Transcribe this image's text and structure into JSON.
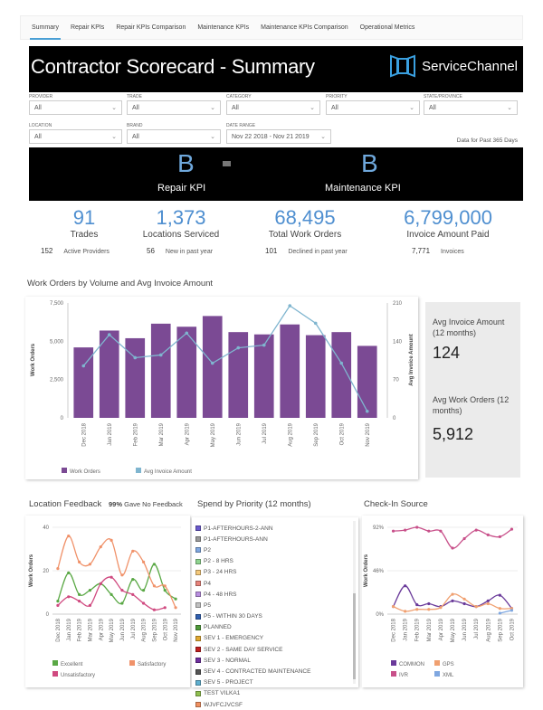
{
  "tabs": [
    "Summary",
    "Repair KPIs",
    "Repair KPIs Comparison",
    "Maintenance KPIs",
    "Maintenance KPIs Comparison",
    "Operational Metrics"
  ],
  "header": {
    "title": "Contractor Scorecard - Summary",
    "logo": "ServiceChannel",
    "logo_color": "#3aa0e0"
  },
  "filters": [
    {
      "label": "PROVIDER",
      "value": "All"
    },
    {
      "label": "TRADE",
      "value": "All"
    },
    {
      "label": "CATEGORY",
      "value": "All"
    },
    {
      "label": "PRIORITY",
      "value": "All"
    },
    {
      "label": "STATE/PROVINCE",
      "value": "All"
    },
    {
      "label": "LOCATION",
      "value": "All"
    },
    {
      "label": "BRAND",
      "value": "All"
    },
    {
      "label": "DATE RANGE",
      "value": "Nov 22 2018 - Nov 21 2019"
    }
  ],
  "data_note": "Data for Past 365 Days",
  "kpi": {
    "repair_grade": "B",
    "repair_label": "Repair KPI",
    "maint_grade": "B",
    "maint_label": "Maintenance KPI"
  },
  "stats": [
    {
      "value": "91",
      "label": "Trades",
      "sub_value": "152",
      "sub_label": "Active Providers"
    },
    {
      "value": "1,373",
      "label": "Locations Serviced",
      "sub_value": "56",
      "sub_label": "New in past year"
    },
    {
      "value": "68,495",
      "label": "Total Work Orders",
      "sub_value": "101",
      "sub_label": "Declined in past year"
    },
    {
      "value": "6,799,000",
      "label": "Invoice Amount Paid",
      "sub_value": "7,771",
      "sub_label": "Invoices"
    }
  ],
  "side": {
    "avg_invoice_label": "Avg Invoice Amount (12 months)",
    "avg_invoice_value": "124",
    "avg_wo_label": "Avg Work Orders (12 months)",
    "avg_wo_value": "5,912"
  },
  "location_feedback": {
    "title": "Location Feedback",
    "pct": "99%",
    "pct_label": "Gave No Feedback"
  },
  "spend_title": "Spend by Priority (12 months)",
  "priorities": [
    {
      "name": "P1-AFTERHOURS-2-ANN",
      "color": "#6a5acd"
    },
    {
      "name": "P1-AFTERHOURS-ANN",
      "color": "#999999"
    },
    {
      "name": "P2",
      "color": "#7fa7e0"
    },
    {
      "name": "P2 - 8 HRS",
      "color": "#8fd48f"
    },
    {
      "name": "P3 - 24 HRS",
      "color": "#f5c97a"
    },
    {
      "name": "P4",
      "color": "#e8837a"
    },
    {
      "name": "P4 - 48 HRS",
      "color": "#b98fe0"
    },
    {
      "name": "P5",
      "color": "#c0c0c0"
    },
    {
      "name": "P5 - WITHIN 30 DAYS",
      "color": "#2f5fb0"
    },
    {
      "name": "PLANNED",
      "color": "#4f9a3a"
    },
    {
      "name": "SEV 1 - EMERGENCY",
      "color": "#e0a830"
    },
    {
      "name": "SEV 2 - SAME DAY SERVICE",
      "color": "#c02020"
    },
    {
      "name": "SEV 3 - NORMAL",
      "color": "#7030a0"
    },
    {
      "name": "SEV 4 - CONTRACTED MAINTENANCE",
      "color": "#555555"
    },
    {
      "name": "SEV 5 - PROJECT",
      "color": "#5fb0d0"
    },
    {
      "name": "TEST VILKA1",
      "color": "#90c050"
    },
    {
      "name": "WJVFCJVCSF",
      "color": "#f09060"
    }
  ],
  "checkin_title": "Check-In Source",
  "chart_data": [
    {
      "type": "bar+line",
      "title": "Work Orders by Volume and Avg Invoice Amount",
      "categories": [
        "Dec 2018",
        "Jan 2019",
        "Feb 2019",
        "Mar 2019",
        "Apr 2019",
        "May 2019",
        "Jun 2019",
        "Jul 2019",
        "Aug 2019",
        "Sep 2019",
        "Oct 2019",
        "Nov 2019"
      ],
      "ylabel": "Work Orders",
      "y2label": "Avg Invoice Amount",
      "ylim": [
        0,
        7500
      ],
      "yticks": [
        "0",
        "2,500",
        "5,000",
        "7,500"
      ],
      "y2lim": [
        0,
        210
      ],
      "y2ticks": [
        "0",
        "70",
        "140",
        "210"
      ],
      "series": [
        {
          "name": "Work Orders",
          "type": "bar",
          "color": "#7b4a94",
          "values": [
            4600,
            5700,
            5200,
            6150,
            5950,
            6650,
            5600,
            5450,
            6100,
            5400,
            5600,
            4700
          ]
        },
        {
          "name": "Avg Invoice Amount",
          "type": "line",
          "color": "#7fb5cf",
          "values": [
            95,
            152,
            110,
            115,
            155,
            100,
            128,
            133,
            205,
            173,
            100,
            12
          ]
        }
      ],
      "legend": "bottom-left"
    },
    {
      "type": "line",
      "categories": [
        "Dec 2018",
        "Jan 2019",
        "Feb 2019",
        "Mar 2019",
        "Apr 2019",
        "May 2019",
        "Jun 2019",
        "Jul 2019",
        "Aug 2019",
        "Sep 2019",
        "Oct 2019",
        "Nov 2019"
      ],
      "ylabel": "Work Orders",
      "ylim": [
        0,
        40
      ],
      "yticks": [
        "0",
        "20",
        "40"
      ],
      "series": [
        {
          "name": "Excellent",
          "color": "#5aa845",
          "values": [
            6,
            19,
            9,
            11,
            14,
            9,
            5,
            16,
            11,
            23,
            11,
            7
          ]
        },
        {
          "name": "Satisfactory",
          "color": "#f0926a",
          "values": [
            21,
            36,
            24,
            23,
            31,
            34,
            18,
            29,
            24,
            13,
            13,
            3
          ]
        },
        {
          "name": "Unsatisfactory",
          "color": "#d04a80",
          "values": [
            4,
            8,
            6,
            4,
            14,
            17,
            11,
            9,
            5,
            2,
            3,
            null
          ]
        }
      ],
      "legend": "bottom"
    },
    {
      "type": "line",
      "categories": [
        "Dec 2018",
        "Jan 2019",
        "Feb 2019",
        "Mar 2019",
        "Apr 2019",
        "May 2019",
        "Jun 2019",
        "Jul 2019",
        "Aug 2019",
        "Sep 2019",
        "Oct 2019"
      ],
      "ylabel": "Work Orders",
      "ylim": [
        0,
        92
      ],
      "yticks": [
        "0%",
        "46%",
        "92%"
      ],
      "series": [
        {
          "name": "COMMON",
          "color": "#6a3a9a",
          "values": [
            8,
            30,
            10,
            11,
            8,
            14,
            11,
            8,
            14,
            20,
            6
          ]
        },
        {
          "name": "GPS",
          "color": "#f0a070",
          "values": [
            8,
            3,
            5,
            5,
            7,
            21,
            16,
            8,
            11,
            6,
            6
          ]
        },
        {
          "name": "IVR",
          "color": "#c8508a",
          "values": [
            88,
            89,
            92,
            88,
            88,
            70,
            80,
            89,
            84,
            82,
            90
          ]
        },
        {
          "name": "XML",
          "color": "#7fa7e0",
          "values": [
            null,
            null,
            null,
            null,
            null,
            null,
            null,
            null,
            null,
            1,
            4
          ]
        }
      ],
      "legend": "bottom"
    }
  ]
}
